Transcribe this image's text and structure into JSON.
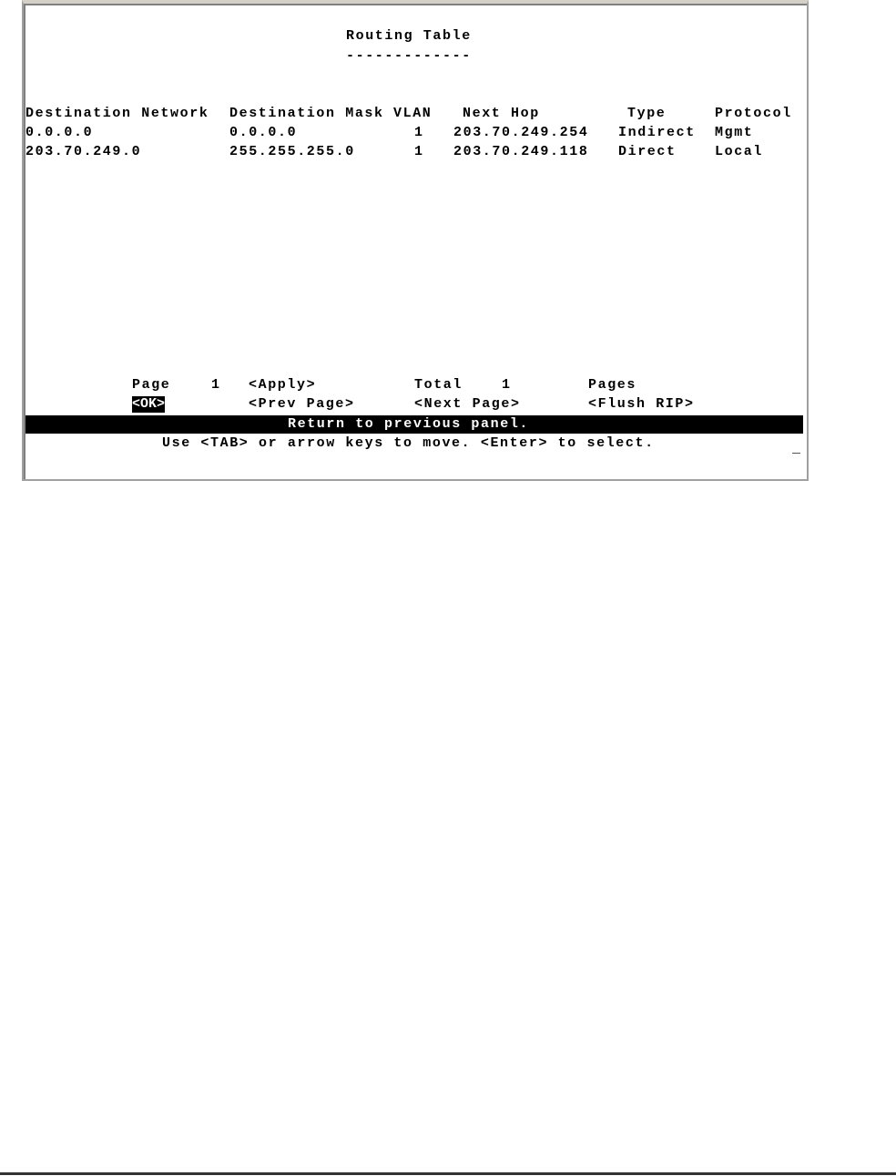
{
  "title": "Routing Table",
  "underline": "-------------",
  "columns": [
    "Destination Network",
    "Destination Mask",
    "VLAN",
    "Next Hop",
    "Type",
    "Protocol"
  ],
  "rows": [
    [
      "0.0.0.0",
      "0.0.0.0",
      "1",
      "203.70.249.254",
      "Indirect",
      "Mgmt"
    ],
    [
      "203.70.249.0",
      "255.255.255.0",
      "1",
      "203.70.249.118",
      "Direct",
      "Local"
    ]
  ],
  "footer": {
    "page_label": "Page",
    "page_value": "1",
    "apply": "<Apply>",
    "total_label": "Total",
    "total_value": "1",
    "pages_label": "Pages",
    "ok": "<OK>",
    "prev": "<Prev Page>",
    "next": "<Next Page>",
    "flush": "<Flush RIP>"
  },
  "status": "Return to previous panel.",
  "help": "Use <TAB> or arrow keys to move. <Enter> to select.",
  "cursor": "_"
}
